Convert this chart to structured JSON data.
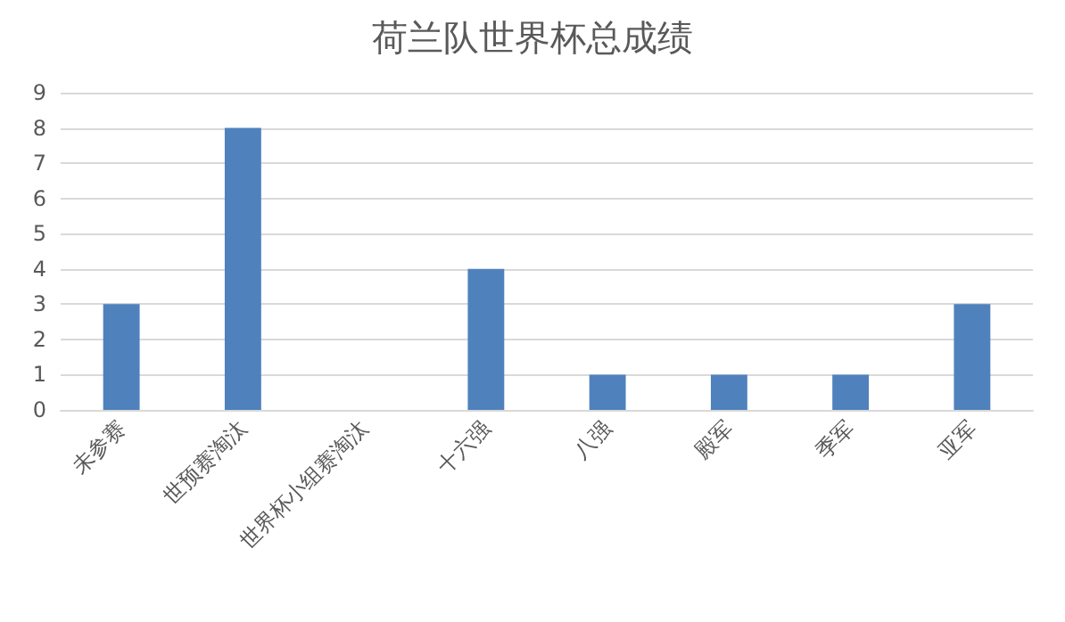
{
  "chart_data": {
    "type": "bar",
    "title": "荷兰队世界杯总成绩",
    "categories": [
      "未参赛",
      "世预赛淘汰",
      "世界杯小组赛淘汰",
      "十六强",
      "八强",
      "殿军",
      "季军",
      "亚军"
    ],
    "values": [
      3,
      8,
      0,
      4,
      1,
      1,
      1,
      3
    ],
    "color": "#4f81bd",
    "ylim": [
      0,
      9
    ],
    "yticks": [
      0,
      1,
      2,
      3,
      4,
      5,
      6,
      7,
      8,
      9
    ],
    "grid": "y"
  }
}
